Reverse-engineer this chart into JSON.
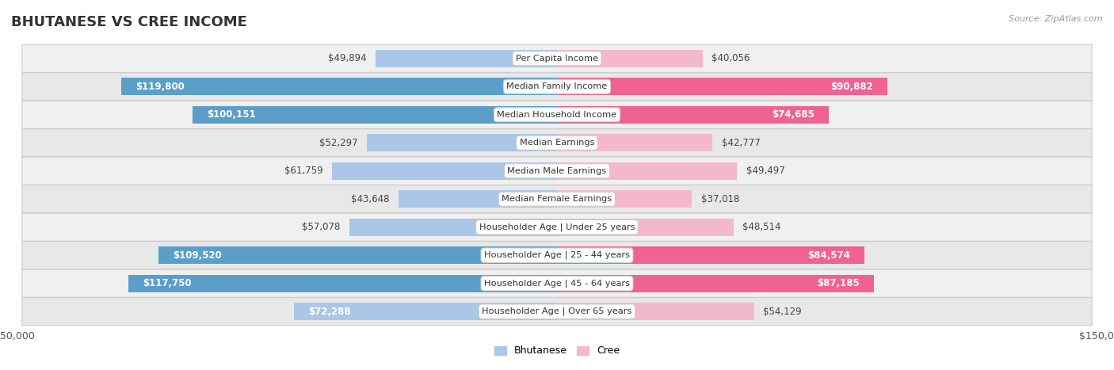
{
  "title": "BHUTANESE VS CREE INCOME",
  "source": "Source: ZipAtlas.com",
  "categories": [
    "Per Capita Income",
    "Median Family Income",
    "Median Household Income",
    "Median Earnings",
    "Median Male Earnings",
    "Median Female Earnings",
    "Householder Age | Under 25 years",
    "Householder Age | 25 - 44 years",
    "Householder Age | 45 - 64 years",
    "Householder Age | Over 65 years"
  ],
  "bhutanese": [
    49894,
    119800,
    100151,
    52297,
    61759,
    43648,
    57078,
    109520,
    117750,
    72288
  ],
  "cree": [
    40056,
    90882,
    74685,
    42777,
    49497,
    37018,
    48514,
    84574,
    87185,
    54129
  ],
  "bhutanese_dark": [
    false,
    true,
    true,
    false,
    false,
    false,
    false,
    true,
    true,
    false
  ],
  "cree_dark": [
    false,
    true,
    true,
    false,
    false,
    false,
    false,
    true,
    true,
    false
  ],
  "max_val": 150000,
  "blue_light": "#aac7e8",
  "blue_dark": "#5b9ec9",
  "pink_light": "#f4b8cc",
  "pink_dark": "#f06292",
  "row_bg_even": "#f0f0f0",
  "row_bg_odd": "#e8e8e8",
  "bar_height": 0.62,
  "inside_threshold": 70000,
  "label_fontsize": 9,
  "title_fontsize": 13,
  "legend_blue": "Bhutanese",
  "legend_pink": "Cree"
}
